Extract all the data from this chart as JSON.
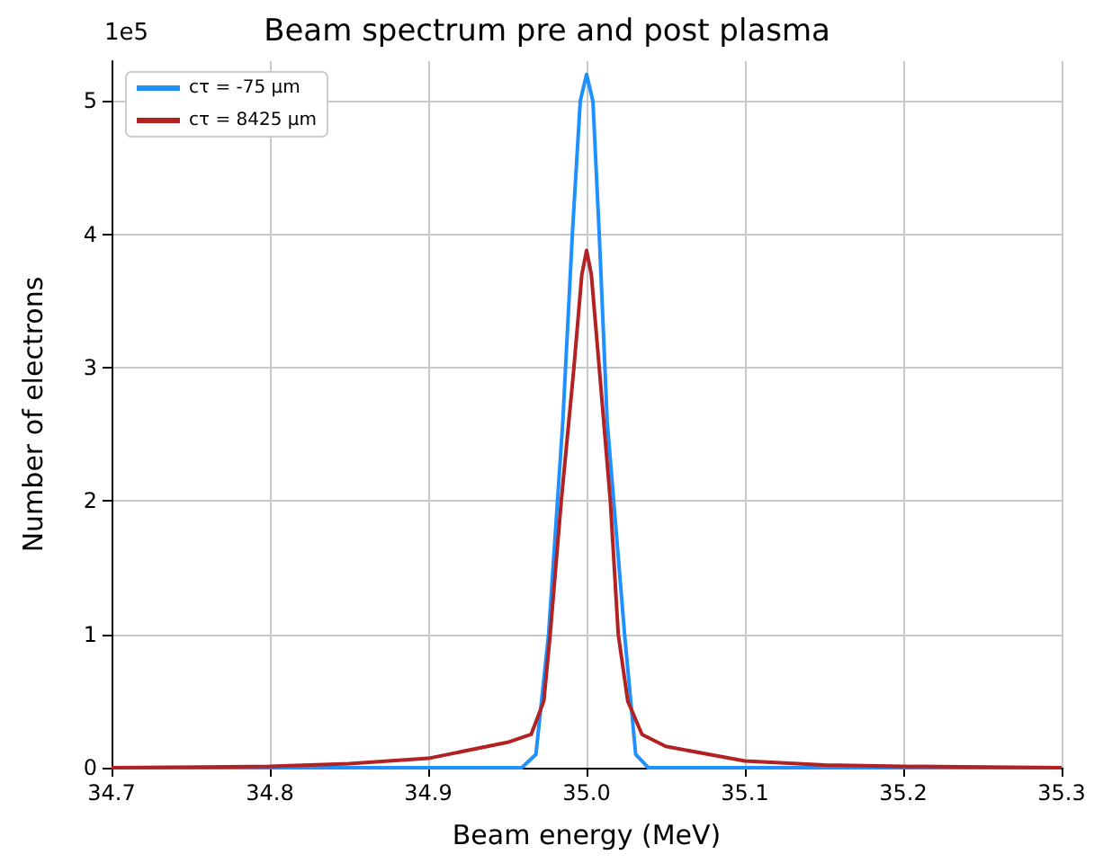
{
  "chart_data": {
    "type": "line",
    "title": "Beam spectrum pre and post plasma",
    "xlabel": "Beam energy (MeV)",
    "ylabel": "Number of electrons",
    "annotations": [
      "1e5"
    ],
    "series": [
      {
        "name": "cτ = -75 μm",
        "color": "#1e90ff",
        "x": [
          34.7,
          34.9,
          34.95,
          34.959,
          34.968,
          34.976,
          34.985,
          34.991,
          34.996,
          35.0,
          35.004,
          35.008,
          35.013,
          35.024,
          35.031,
          35.039,
          35.05,
          35.1,
          35.3
        ],
        "values": [
          0,
          0,
          0,
          0,
          0.1,
          1,
          2.6,
          4,
          5,
          5.2,
          5,
          4,
          2.6,
          1,
          0.1,
          0,
          0,
          0,
          0
        ]
      },
      {
        "name": "cτ = 8425 μm",
        "color": "#b22222",
        "x": [
          34.7,
          34.8,
          34.85,
          34.9,
          34.95,
          34.965,
          34.973,
          34.977,
          34.984,
          34.992,
          34.997,
          35.0,
          35.003,
          35.008,
          35.015,
          35.02,
          35.026,
          35.035,
          35.05,
          35.1,
          35.15,
          35.2,
          35.3
        ],
        "values": [
          0,
          0.01,
          0.03,
          0.07,
          0.19,
          0.25,
          0.5,
          1,
          2,
          3,
          3.7,
          3.88,
          3.7,
          3,
          2,
          1,
          0.5,
          0.25,
          0.16,
          0.05,
          0.02,
          0.01,
          0
        ]
      }
    ],
    "xlim": [
      34.7,
      35.3
    ],
    "xticks": [
      34.7,
      34.8,
      34.9,
      {
        "value": 35,
        "label": "35.0"
      },
      35.1,
      35.2,
      35.3
    ],
    "ylim": [
      0,
      5.3
    ],
    "yticks": [
      0,
      1,
      2,
      3,
      4,
      5
    ],
    "grid": true,
    "legend": "top left",
    "marker": "none",
    "line_style": "solid"
  }
}
